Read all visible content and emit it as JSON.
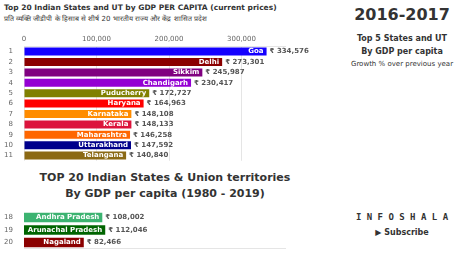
{
  "chart_data": [
    {
      "type": "bar",
      "orientation": "horizontal",
      "title": "Top 20 Indian States and UT by GDP PER CAPITA (current prices)",
      "subtitle": "प्रति व्यक्ति जीडीपी के हिसाब से शीर्ष 20 भारतीय राज्य और केंद्र शासित प्रदेश",
      "annotations": [
        "2016-2017",
        "Top 5 States and UT",
        "By GDP per capita",
        "Growth % over previous year",
        "TOP 20 Indian States & Union territories",
        "By GDP per capita (1980 - 2019)",
        "I N F O S H A L A",
        "▶  Subscribe"
      ],
      "categories": [
        "1",
        "2",
        "3",
        "4",
        "5",
        "6",
        "7",
        "8",
        "9",
        "10",
        "11"
      ],
      "bar_names": [
        "Goa",
        "Delhi",
        "Sikkim",
        "Chandigarh",
        "Puducherry",
        "Haryana",
        "Karnataka",
        "Kerala",
        "Maharashtra",
        "Uttarakhand",
        "Telangana"
      ],
      "values": [
        334576,
        273301,
        245987,
        230417,
        172727,
        164963,
        148108,
        148133,
        146258,
        147592,
        140840
      ],
      "value_labels": [
        "₹ 334,576",
        "₹ 273,301",
        "₹ 245,987",
        "₹ 230,417",
        "₹ 172,727",
        "₹ 164,963",
        "₹ 148,108",
        "₹ 148,133",
        "₹ 146,258",
        "₹ 147,592",
        "₹ 140,840"
      ],
      "colors": [
        "#1400FF",
        "#8B0000",
        "#800080",
        "#9400D3",
        "#808000",
        "#FF0000",
        "#FF8C00",
        "#DC143C",
        "#FF6600",
        "#00008B",
        "#8B6914"
      ],
      "xlim": [
        0,
        360000
      ],
      "xticks": [
        0,
        {
          "value": 100000,
          "label": "100,000"
        },
        {
          "value": 200000,
          "label": "200,000"
        },
        {
          "value": 300000,
          "label": "300,000"
        }
      ],
      "grid": true,
      "data_labels": true
    },
    {
      "type": "bar",
      "orientation": "horizontal",
      "categories": [
        "18",
        "19",
        "20"
      ],
      "bar_names": [
        "Andhra Pradesh",
        "Arunachal Pradesh",
        "Nagaland"
      ],
      "values": [
        108002,
        112046,
        82466
      ],
      "value_labels": [
        "₹ 108,002",
        "₹ 112,046",
        "₹ 82,466"
      ],
      "colors": [
        "#3CB371",
        "#006400",
        "#8B0000"
      ],
      "xlim": [
        0,
        360000
      ],
      "grid": false,
      "data_labels": true,
      "tick_labels": false
    }
  ]
}
